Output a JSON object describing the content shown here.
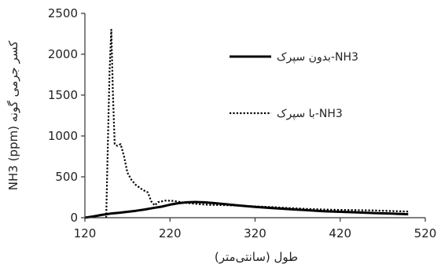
{
  "chart_data": {
    "type": "line",
    "title": "",
    "xlabel": "طول (سانتی‌متر)",
    "ylabel": "NH3 (ppm) کسر جرمی گونه",
    "xlim": [
      120,
      520
    ],
    "ylim": [
      0,
      2500
    ],
    "xticks": [
      120,
      220,
      320,
      420,
      520
    ],
    "yticks": [
      0,
      500,
      1000,
      1500,
      2000,
      2500
    ],
    "xtick_labels": [
      "120",
      "220",
      "320",
      "420",
      "520"
    ],
    "ytick_labels": [
      "0",
      "500",
      "1000",
      "1500",
      "2000",
      "2500"
    ],
    "grid": false,
    "legend_position": "top-right, inside plot",
    "series": [
      {
        "name": "بدون سپرک-NH3",
        "style": "solid",
        "color": "#000000",
        "x": [
          120,
          130,
          140,
          150,
          160,
          170,
          180,
          190,
          200,
          210,
          220,
          230,
          240,
          250,
          260,
          270,
          280,
          300,
          320,
          340,
          360,
          380,
          400,
          420,
          440,
          460,
          480,
          500
        ],
        "y": [
          0,
          15,
          35,
          50,
          60,
          72,
          85,
          100,
          118,
          135,
          160,
          178,
          188,
          192,
          188,
          180,
          170,
          150,
          132,
          118,
          105,
          92,
          80,
          72,
          64,
          57,
          50,
          42
        ]
      },
      {
        "name": "با سپرک-NH3",
        "style": "dotted",
        "color": "#000000",
        "x": [
          145,
          147,
          149,
          151,
          153,
          155,
          158,
          162,
          166,
          170,
          175,
          180,
          188,
          194,
          198,
          202,
          206,
          215,
          225,
          235,
          245,
          255,
          265,
          280,
          300,
          320,
          340,
          360,
          380,
          400,
          420,
          440,
          460,
          480,
          500
        ],
        "y": [
          0,
          900,
          1800,
          2300,
          1500,
          900,
          880,
          900,
          750,
          550,
          460,
          400,
          340,
          310,
          200,
          150,
          190,
          210,
          205,
          185,
          175,
          165,
          158,
          155,
          148,
          138,
          130,
          118,
          108,
          100,
          95,
          92,
          88,
          82,
          75
        ]
      }
    ]
  }
}
